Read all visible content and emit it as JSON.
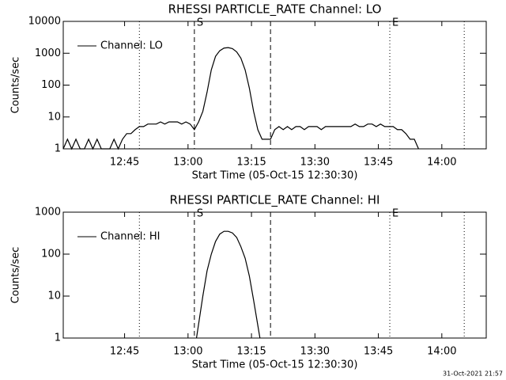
{
  "chart_data": [
    {
      "type": "line",
      "title": "RHESSI PARTICLE_RATE Channel: LO",
      "xlabel": "Start Time (05-Oct-15 12:30:30)",
      "ylabel": "Counts/sec",
      "log_y": true,
      "xlim": [
        0,
        100
      ],
      "ylim": [
        1,
        10000
      ],
      "xticks": [
        {
          "value": 14.5,
          "label": "12:45"
        },
        {
          "value": 29.5,
          "label": "13:00"
        },
        {
          "value": 44.5,
          "label": "13:15"
        },
        {
          "value": 59.5,
          "label": "13:30"
        },
        {
          "value": 74.5,
          "label": "13:45"
        },
        {
          "value": 89.5,
          "label": "14:00"
        }
      ],
      "yticks": [
        1,
        10,
        100,
        1000,
        10000
      ],
      "legend": "upper left",
      "vlines": [
        {
          "x": 18,
          "style": "dotted"
        },
        {
          "x": 31,
          "style": "dashed"
        },
        {
          "x": 49,
          "style": "dashed"
        },
        {
          "x": 77.2,
          "style": "dotted"
        },
        {
          "x": 94.8,
          "style": "dotted"
        }
      ],
      "markers": [
        {
          "x": 31,
          "label": "S"
        },
        {
          "x": 77.2,
          "label": "E"
        }
      ],
      "series": [
        {
          "name": "Channel: LO",
          "color": "#000000",
          "x": [
            0,
            1,
            2,
            3,
            4,
            5,
            6,
            7,
            8,
            9,
            10,
            11,
            12,
            13,
            14,
            15,
            16,
            17,
            18,
            19,
            20,
            21,
            22,
            23,
            24,
            25,
            26,
            27,
            28,
            29,
            30,
            31,
            32,
            33,
            34,
            35,
            36,
            37,
            38,
            39,
            40,
            41,
            42,
            43,
            44,
            45,
            46,
            47,
            48,
            49,
            50,
            51,
            52,
            53,
            54,
            55,
            56,
            57,
            58,
            59,
            60,
            61,
            62,
            63,
            64,
            65,
            66,
            67,
            68,
            69,
            70,
            71,
            72,
            73,
            74,
            75,
            76,
            77,
            78,
            79,
            80,
            81,
            82,
            83,
            84
          ],
          "values": [
            1,
            2,
            1,
            2,
            1,
            1,
            2,
            1,
            2,
            1,
            1,
            1,
            2,
            1,
            2,
            3,
            3,
            4,
            5,
            5,
            6,
            6,
            6,
            7,
            6,
            7,
            7,
            7,
            6,
            7,
            6,
            4,
            7,
            15,
            60,
            300,
            800,
            1200,
            1450,
            1500,
            1400,
            1100,
            700,
            300,
            80,
            15,
            4,
            2,
            2,
            2,
            4,
            5,
            4,
            5,
            4,
            5,
            5,
            4,
            5,
            5,
            5,
            4,
            5,
            5,
            5,
            5,
            5,
            5,
            5,
            6,
            5,
            5,
            6,
            6,
            5,
            6,
            5,
            5,
            5,
            4,
            4,
            3,
            2,
            2,
            1
          ]
        }
      ]
    },
    {
      "type": "line",
      "title": "RHESSI PARTICLE_RATE Channel: HI",
      "xlabel": "Start Time (05-Oct-15 12:30:30)",
      "ylabel": "Counts/sec",
      "log_y": true,
      "xlim": [
        0,
        100
      ],
      "ylim": [
        1,
        1000
      ],
      "xticks": [
        {
          "value": 14.5,
          "label": "12:45"
        },
        {
          "value": 29.5,
          "label": "13:00"
        },
        {
          "value": 44.5,
          "label": "13:15"
        },
        {
          "value": 59.5,
          "label": "13:30"
        },
        {
          "value": 74.5,
          "label": "13:45"
        },
        {
          "value": 89.5,
          "label": "14:00"
        }
      ],
      "yticks": [
        1,
        10,
        100,
        1000
      ],
      "legend": "upper left",
      "vlines": [
        {
          "x": 18,
          "style": "dotted"
        },
        {
          "x": 31,
          "style": "dashed"
        },
        {
          "x": 49,
          "style": "dashed"
        },
        {
          "x": 77.2,
          "style": "dotted"
        },
        {
          "x": 94.8,
          "style": "dotted"
        }
      ],
      "markers": [
        {
          "x": 31,
          "label": "S"
        },
        {
          "x": 77.2,
          "label": "E"
        }
      ],
      "series": [
        {
          "name": "Channel: HI",
          "color": "#000000",
          "x": [
            31.5,
            33,
            34,
            35,
            36,
            37,
            38,
            39,
            40,
            41,
            42,
            43,
            44,
            45,
            46.5
          ],
          "values": [
            1,
            10,
            40,
            100,
            200,
            300,
            350,
            350,
            320,
            250,
            150,
            80,
            30,
            8,
            1
          ]
        }
      ]
    }
  ],
  "footer": "31-Oct-2021 21:57"
}
